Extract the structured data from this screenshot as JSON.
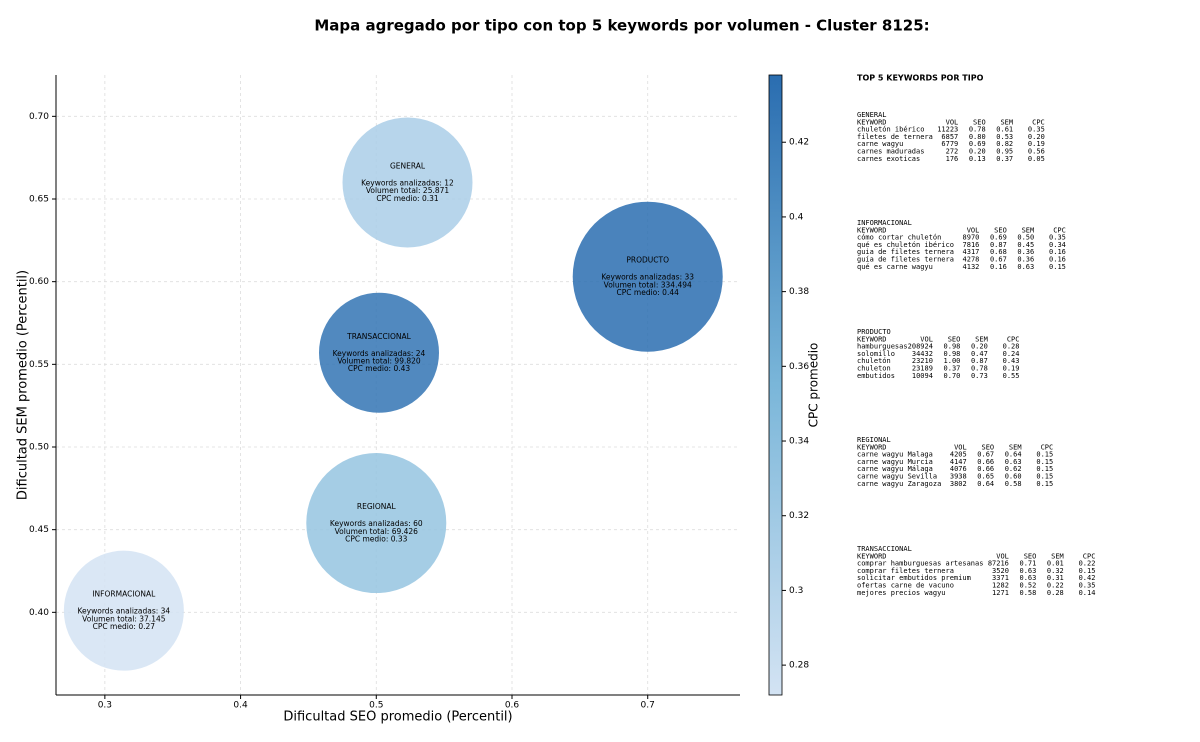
{
  "chart_data": {
    "type": "bubble",
    "title": "Mapa agregado por tipo con top 5 keywords por volumen - Cluster 8125:",
    "x_label": "Dificultad SEO promedio (Percentil)",
    "y_label": "Dificultad SEM promedio (Percentil)",
    "colorbar_label": "CPC promedio",
    "categories": [
      "GENERAL",
      "PRODUCTO",
      "TRANSACCIONAL",
      "REGIONAL",
      "INFORMACIONAL"
    ],
    "x": [
      0.523,
      0.7,
      0.502,
      0.5,
      0.314
    ],
    "values": [
      0.66,
      0.603,
      0.557,
      0.454,
      0.401
    ],
    "sizes": [
      65,
      75,
      60,
      70,
      60
    ],
    "cpc": [
      0.31,
      0.44,
      0.43,
      0.33,
      0.27
    ],
    "annotations": [
      [
        "Keywords analizadas: 12",
        "Volumen total: 25.871",
        "CPC medio: 0.31"
      ],
      [
        "Keywords analizadas: 33",
        "Volumen total: 334.494",
        "CPC medio: 0.44"
      ],
      [
        "Keywords analizadas: 24",
        "Volumen total: 99.820",
        "CPC medio: 0.43"
      ],
      [
        "Keywords analizadas: 60",
        "Volumen total: 69.426",
        "CPC medio: 0.33"
      ],
      [
        "Keywords analizadas: 34",
        "Volumen total: 37.145",
        "CPC medio: 0.27"
      ]
    ],
    "colormap": [
      "#d3e3f3",
      "#7ab6d9",
      "#2a6db0"
    ],
    "clim": [
      0.272,
      0.438
    ],
    "xlim": [
      0.264,
      0.768
    ],
    "ylim": [
      0.35,
      0.725
    ],
    "xticks": [
      0.3,
      0.4,
      0.5,
      0.6,
      0.7
    ],
    "yticks": [
      {
        "value": 0.4,
        "label": "0.40"
      },
      {
        "value": 0.45,
        "label": "0.45"
      },
      {
        "value": 0.5,
        "label": "0.50"
      },
      {
        "value": 0.55,
        "label": "0.55"
      },
      {
        "value": 0.6,
        "label": "0.60"
      },
      {
        "value": 0.65,
        "label": "0.65"
      },
      {
        "value": 0.7,
        "label": "0.70"
      }
    ],
    "cticks": [
      0.28,
      0.3,
      0.32,
      0.34,
      0.36,
      0.38,
      0.4,
      0.42
    ],
    "grid": true
  },
  "panel": {
    "title": "TOP 5 KEYWORDS POR TIPO",
    "header": [
      "KEYWORD",
      "VOL",
      "SEO",
      "SEM",
      "CPC"
    ],
    "groups": [
      {
        "name": "GENERAL",
        "rows": [
          [
            "chuletón ibérico",
            "11223",
            "0.78",
            "0.61",
            "0.35"
          ],
          [
            "filetes de ternera",
            "6857",
            "0.80",
            "0.53",
            "0.20"
          ],
          [
            "carne wagyu",
            "6779",
            "0.69",
            "0.82",
            "0.19"
          ],
          [
            "carnes maduradas",
            "272",
            "0.20",
            "0.95",
            "0.56"
          ],
          [
            "carnes exoticas",
            "176",
            "0.13",
            "0.37",
            "0.05"
          ]
        ]
      },
      {
        "name": "INFORMACIONAL",
        "rows": [
          [
            "cómo cortar chuletón",
            "8970",
            "0.69",
            "0.50",
            "0.35"
          ],
          [
            "qué es chuletón ibérico",
            "7816",
            "0.87",
            "0.45",
            "0.34"
          ],
          [
            "guia de filetes ternera",
            "4317",
            "0.68",
            "0.36",
            "0.16"
          ],
          [
            "guía de filetes ternera",
            "4278",
            "0.67",
            "0.36",
            "0.16"
          ],
          [
            "qué es carne wagyu",
            "4132",
            "0.16",
            "0.63",
            "0.15"
          ]
        ]
      },
      {
        "name": "PRODUCTO",
        "rows": [
          [
            "hamburguesas",
            "208924",
            "0.98",
            "0.20",
            "0.28"
          ],
          [
            "solomillo",
            "34432",
            "0.98",
            "0.47",
            "0.24"
          ],
          [
            "chuletón",
            "23210",
            "1.00",
            "0.87",
            "0.43"
          ],
          [
            "chuleton",
            "23189",
            "0.37",
            "0.78",
            "0.19"
          ],
          [
            "embutidos",
            "10094",
            "0.70",
            "0.73",
            "0.55"
          ]
        ]
      },
      {
        "name": "REGIONAL",
        "rows": [
          [
            "carne wagyu Malaga",
            "4205",
            "0.67",
            "0.64",
            "0.15"
          ],
          [
            "carne wagyu Murcia",
            "4147",
            "0.66",
            "0.63",
            "0.15"
          ],
          [
            "carne wagyu Málaga",
            "4076",
            "0.66",
            "0.62",
            "0.15"
          ],
          [
            "carne wagyu Sevilla",
            "3938",
            "0.65",
            "0.60",
            "0.15"
          ],
          [
            "carne wagyu Zaragoza",
            "3802",
            "0.64",
            "0.58",
            "0.15"
          ]
        ]
      },
      {
        "name": "TRANSACCIONAL",
        "rows": [
          [
            "comprar hamburguesas artesanas",
            "87216",
            "0.71",
            "0.01",
            "0.22"
          ],
          [
            "comprar filetes ternera",
            "3520",
            "0.63",
            "0.32",
            "0.15"
          ],
          [
            "solicitar embutidos premium",
            "3371",
            "0.63",
            "0.31",
            "0.42"
          ],
          [
            "ofertas carne de vacuno",
            "1282",
            "0.52",
            "0.22",
            "0.35"
          ],
          [
            "mejores precios wagyu",
            "1271",
            "0.58",
            "0.28",
            "0.14"
          ]
        ]
      }
    ]
  }
}
